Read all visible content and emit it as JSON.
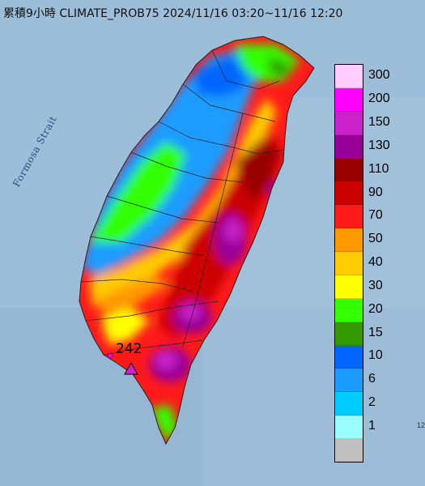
{
  "title": "累積9小時 CLIMATE_PROB75 2024/11/16 03:20~11/16 12:20",
  "strait_label": "Formosa Strait",
  "max_marker": {
    "value": "242",
    "icon": "triangle-marker-icon"
  },
  "corner_tick": "12",
  "legend": [
    {
      "label": "300",
      "color": "#ffccff"
    },
    {
      "label": "200",
      "color": "#ff00ff"
    },
    {
      "label": "150",
      "color": "#cc22cc"
    },
    {
      "label": "130",
      "color": "#990099"
    },
    {
      "label": "110",
      "color": "#990000"
    },
    {
      "label": "90",
      "color": "#cc0000"
    },
    {
      "label": "70",
      "color": "#ff1a1a"
    },
    {
      "label": "50",
      "color": "#ff9900"
    },
    {
      "label": "40",
      "color": "#ffcc00"
    },
    {
      "label": "30",
      "color": "#ffff00"
    },
    {
      "label": "20",
      "color": "#33ff00"
    },
    {
      "label": "15",
      "color": "#339900"
    },
    {
      "label": "10",
      "color": "#0066ff"
    },
    {
      "label": "6",
      "color": "#1a9cff"
    },
    {
      "label": "2",
      "color": "#00ccff"
    },
    {
      "label": "1",
      "color": "#99ffff"
    },
    {
      "label": "",
      "color": "#c0c0c0"
    }
  ]
}
